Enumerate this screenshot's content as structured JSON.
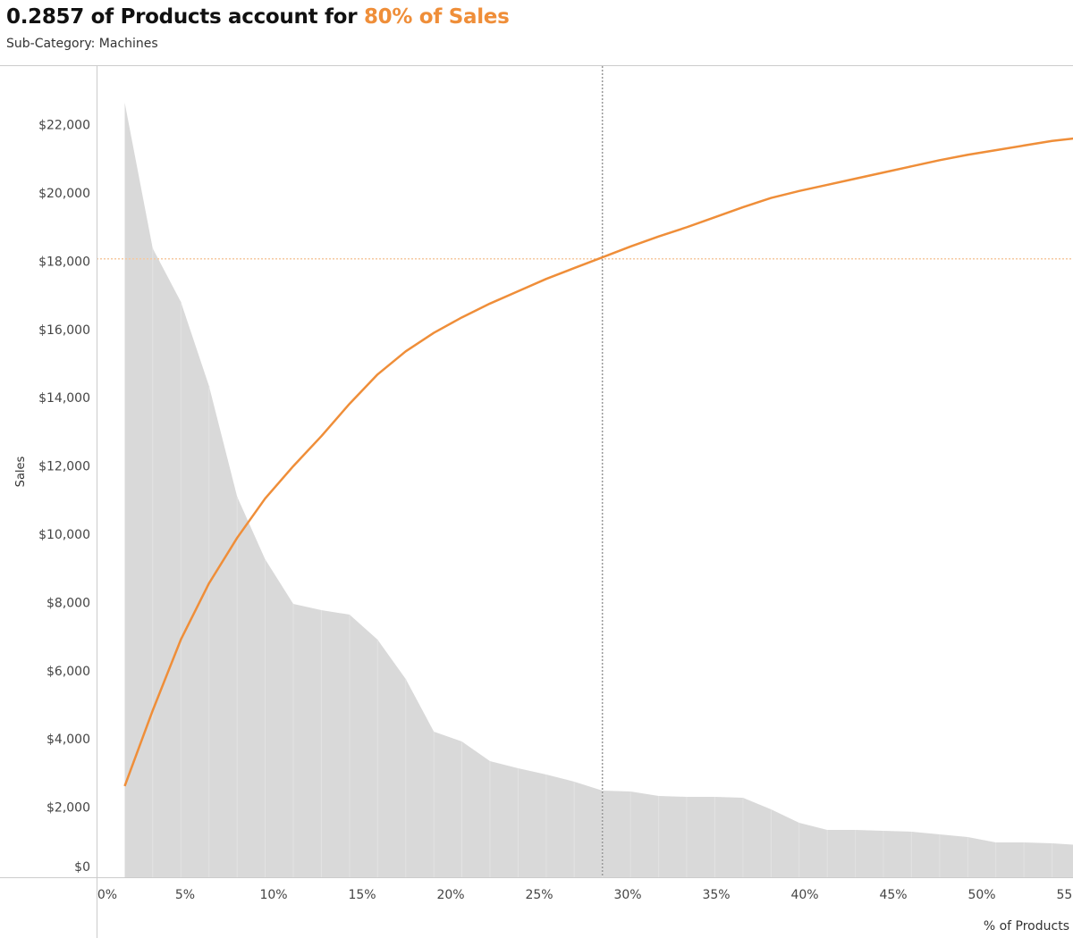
{
  "header": {
    "title_prefix": "0.2857 of Products account for ",
    "title_highlight": "80% of Sales",
    "subtitle": "Sub-Category: Machines"
  },
  "chart_data": {
    "type": "area+line",
    "title": "0.2857 of Products account for 80% of Sales",
    "subtitle": "Sub-Category: Machines",
    "xlabel": "% of Products",
    "ylabel": "Sales",
    "xlim": [
      0,
      55
    ],
    "ylim": [
      0,
      22600
    ],
    "x_ticks": [
      "0%",
      "5%",
      "10%",
      "15%",
      "20%",
      "25%",
      "30%",
      "35%",
      "40%",
      "45%",
      "50%",
      "55%"
    ],
    "y_ticks": [
      "$0",
      "$2,000",
      "$4,000",
      "$6,000",
      "$8,000",
      "$10,000",
      "$12,000",
      "$14,000",
      "$16,000",
      "$18,000",
      "$20,000",
      "$22,000"
    ],
    "x_percent": [
      1.59,
      3.17,
      4.76,
      6.35,
      7.94,
      9.52,
      11.11,
      12.7,
      14.29,
      15.87,
      17.46,
      19.05,
      20.63,
      22.22,
      23.81,
      25.4,
      26.98,
      28.57,
      30.16,
      31.75,
      33.33,
      34.92,
      36.51,
      38.1,
      39.68,
      41.27,
      42.86,
      44.44,
      46.03,
      47.62,
      49.21,
      50.79,
      52.38,
      53.97,
      55.56
    ],
    "series": [
      {
        "type": "area",
        "color": "#d9d9d9",
        "values": [
          22646,
          18378,
          16808,
          14347,
          11100,
          9267,
          7958,
          7775,
          7644,
          6911,
          5759,
          4215,
          3927,
          3351,
          3142,
          2958,
          2749,
          2487,
          2461,
          2330,
          2304,
          2304,
          2278,
          1937,
          1545,
          1335,
          1335,
          1309,
          1283,
          1204,
          1126,
          969,
          969,
          942,
          890
        ]
      },
      {
        "type": "line",
        "color": "#ef8e39",
        "unit": "cumulative % of sales",
        "values": [
          11.6,
          21.4,
          30.6,
          37.9,
          43.8,
          48.9,
          53.1,
          57.0,
          61.2,
          65.0,
          68.0,
          70.4,
          72.4,
          74.2,
          75.8,
          77.4,
          78.8,
          80.2,
          81.6,
          82.9,
          84.1,
          85.4,
          86.7,
          87.9,
          88.8,
          89.6,
          90.4,
          91.2,
          92.0,
          92.8,
          93.5,
          94.1,
          94.7,
          95.3,
          95.7
        ]
      }
    ],
    "reference_lines": {
      "x_percent": 28.57,
      "cumulative_sales_percent": 80
    },
    "grid": false,
    "legend": "none"
  }
}
